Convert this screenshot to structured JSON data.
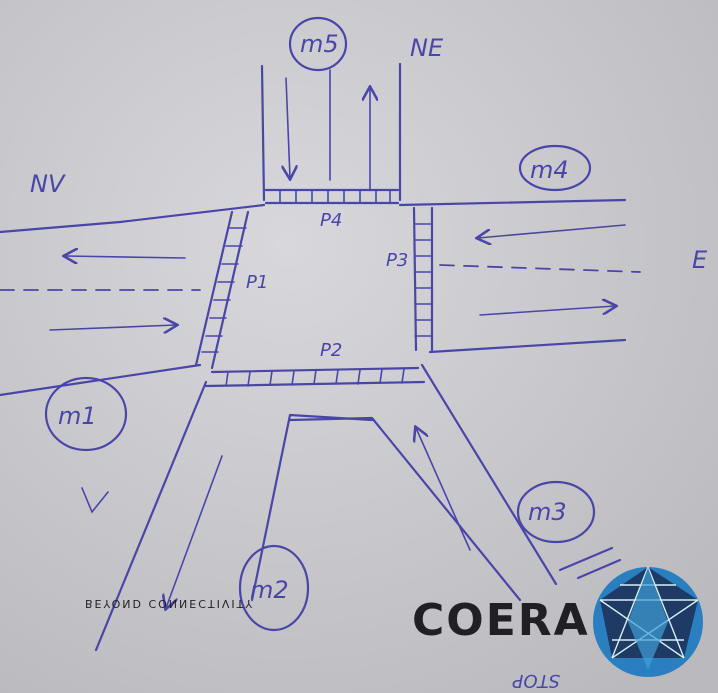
{
  "compass": {
    "ne": "NE",
    "nv": "NV",
    "e": "E"
  },
  "crossings": {
    "p1": "P1",
    "p2": "P2",
    "p3": "P3",
    "p4": "P4"
  },
  "markers": {
    "m1": "m1",
    "m2": "m2",
    "m3": "m3",
    "m4": "m4",
    "m5": "m5"
  },
  "lanes": {
    "v_note": "V"
  },
  "annotation": {
    "stop": "STOP"
  },
  "logo": {
    "wordmark": "COERA",
    "tagline": "BEYOND CONNECTIVITY"
  },
  "colors": {
    "ink": "#4a46a8",
    "paper": "#c8c8cc",
    "logo_dark": "#1f1f24",
    "logo_blue": "#2a7fc0"
  }
}
